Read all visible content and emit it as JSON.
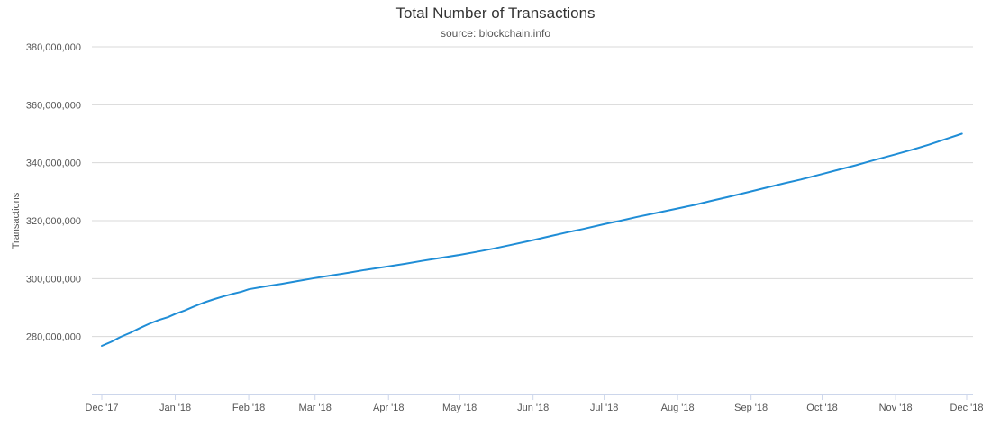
{
  "chart_data": {
    "type": "line",
    "title": "Total Number of Transactions",
    "subtitle": "source: blockchain.info",
    "ylabel": "Transactions",
    "xlabel": "",
    "x_tick_labels": [
      "Dec '17",
      "Jan '18",
      "Feb '18",
      "Mar '18",
      "Apr '18",
      "May '18",
      "Jun '18",
      "Jul '18",
      "Aug '18",
      "Sep '18",
      "Oct '18",
      "Nov '18",
      "Dec '18"
    ],
    "x_tick_dates": [
      "2017-12-01",
      "2018-01-01",
      "2018-02-01",
      "2018-03-01",
      "2018-04-01",
      "2018-05-01",
      "2018-06-01",
      "2018-07-01",
      "2018-08-01",
      "2018-09-01",
      "2018-10-01",
      "2018-11-01",
      "2018-12-01"
    ],
    "y_tick_labels": [
      "280,000,000",
      "300,000,000",
      "320,000,000",
      "340,000,000",
      "360,000,000",
      "380,000,000"
    ],
    "y_ticks": [
      280000000,
      300000000,
      320000000,
      340000000,
      360000000,
      380000000
    ],
    "ylim": [
      260000000,
      380000000
    ],
    "grid": true,
    "legend": "none",
    "line_color": "#1f8dd6",
    "series": [
      {
        "x": [
          "2017-12-01",
          "2017-12-05",
          "2017-12-09",
          "2017-12-13",
          "2017-12-17",
          "2017-12-21",
          "2017-12-25",
          "2017-12-29",
          "2018-01-01",
          "2018-01-05",
          "2018-01-09",
          "2018-01-13",
          "2018-01-17",
          "2018-01-21",
          "2018-01-25",
          "2018-01-29",
          "2018-02-01",
          "2018-02-08",
          "2018-02-15",
          "2018-02-22",
          "2018-03-01",
          "2018-03-08",
          "2018-03-15",
          "2018-03-22",
          "2018-04-01",
          "2018-04-08",
          "2018-04-15",
          "2018-04-22",
          "2018-05-01",
          "2018-05-08",
          "2018-05-15",
          "2018-05-22",
          "2018-06-01",
          "2018-06-08",
          "2018-06-15",
          "2018-06-22",
          "2018-07-01",
          "2018-07-08",
          "2018-07-15",
          "2018-07-22",
          "2018-08-01",
          "2018-08-08",
          "2018-08-15",
          "2018-08-22",
          "2018-09-01",
          "2018-09-08",
          "2018-09-15",
          "2018-09-22",
          "2018-10-01",
          "2018-10-08",
          "2018-10-15",
          "2018-10-22",
          "2018-11-01",
          "2018-11-08",
          "2018-11-15",
          "2018-11-22",
          "2018-11-29"
        ],
        "values": [
          276800000,
          278200000,
          279900000,
          281300000,
          282900000,
          284400000,
          285700000,
          286700000,
          287800000,
          289000000,
          290400000,
          291700000,
          292800000,
          293800000,
          294700000,
          295500000,
          296300000,
          297300000,
          298200000,
          299200000,
          300200000,
          301100000,
          302000000,
          303000000,
          304200000,
          305100000,
          306100000,
          307000000,
          308200000,
          309200000,
          310300000,
          311500000,
          313300000,
          314600000,
          315900000,
          317100000,
          318800000,
          320000000,
          321300000,
          322500000,
          324200000,
          325400000,
          326800000,
          328100000,
          330100000,
          331500000,
          332900000,
          334200000,
          336100000,
          337600000,
          339100000,
          340700000,
          342900000,
          344500000,
          346200000,
          348100000,
          350000000
        ]
      }
    ]
  }
}
